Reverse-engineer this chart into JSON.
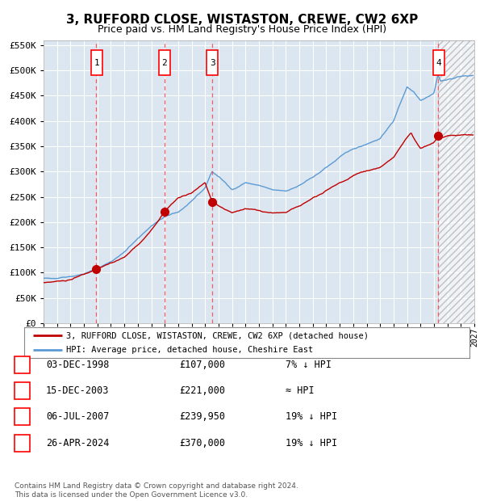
{
  "title": "3, RUFFORD CLOSE, WISTASTON, CREWE, CW2 6XP",
  "subtitle": "Price paid vs. HM Land Registry's House Price Index (HPI)",
  "plot_bg_color": "#dce6f0",
  "ylim": [
    0,
    560000
  ],
  "yticks": [
    0,
    50000,
    100000,
    150000,
    200000,
    250000,
    300000,
    350000,
    400000,
    450000,
    500000,
    550000
  ],
  "ytick_labels": [
    "£0",
    "£50K",
    "£100K",
    "£150K",
    "£200K",
    "£250K",
    "£300K",
    "£350K",
    "£400K",
    "£450K",
    "£500K",
    "£550K"
  ],
  "year_start": 1995,
  "year_end": 2027,
  "sale_decimal": [
    1998.92,
    2003.96,
    2007.51,
    2024.32
  ],
  "sale_prices": [
    107000,
    221000,
    239950,
    370000
  ],
  "sale_labels": [
    "1",
    "2",
    "3",
    "4"
  ],
  "hpi_color": "#5b9bd5",
  "price_color": "#c00000",
  "dashed_color": "#ff4444",
  "grid_color": "#ffffff",
  "legend_label_price": "3, RUFFORD CLOSE, WISTASTON, CREWE, CW2 6XP (detached house)",
  "legend_label_hpi": "HPI: Average price, detached house, Cheshire East",
  "table_rows": [
    [
      "1",
      "03-DEC-1998",
      "£107,000",
      "7% ↓ HPI"
    ],
    [
      "2",
      "15-DEC-2003",
      "£221,000",
      "≈ HPI"
    ],
    [
      "3",
      "06-JUL-2007",
      "£239,950",
      "19% ↓ HPI"
    ],
    [
      "4",
      "26-APR-2024",
      "£370,000",
      "19% ↓ HPI"
    ]
  ],
  "footer": "Contains HM Land Registry data © Crown copyright and database right 2024.\nThis data is licensed under the Open Government Licence v3.0."
}
